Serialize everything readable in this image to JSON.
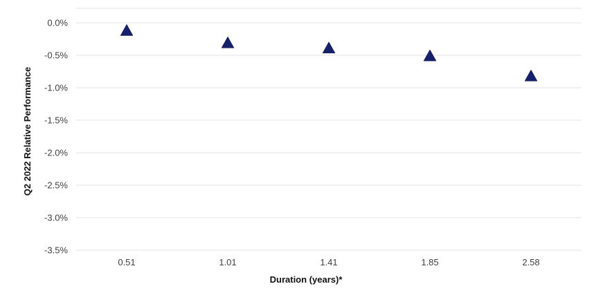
{
  "chart_data": {
    "type": "scatter",
    "categories": [
      "0.51",
      "1.01",
      "1.41",
      "1.85",
      "2.58"
    ],
    "values": [
      -0.12,
      -0.31,
      -0.39,
      -0.51,
      -0.82
    ],
    "value_unit": "%",
    "xlabel": "Duration (years)*",
    "ylabel": "Q2 2022 Relative Performance",
    "ylim": [
      -3.5,
      0.0
    ],
    "yticks": [
      "0.0%",
      "-0.5%",
      "-1.0%",
      "-1.5%",
      "-2.0%",
      "-2.5%",
      "-3.0%",
      "-3.5%"
    ],
    "grid": true,
    "marker": "triangle",
    "legend": "none",
    "colors": {
      "marker": "#16206b",
      "grid": "#e6e6e6",
      "text": "#404040"
    }
  }
}
